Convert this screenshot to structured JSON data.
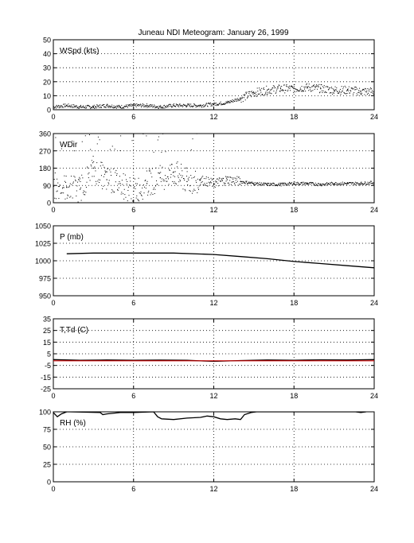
{
  "figure": {
    "title": "Juneau NDI Meteogram:    January 26, 1999"
  },
  "chart_data": [
    {
      "type": "scatter",
      "label": "WSpd (kts)",
      "ylim": [
        0,
        50
      ],
      "yticks": [
        0,
        10,
        20,
        30,
        40,
        50
      ],
      "xlim": [
        0,
        24
      ],
      "xticks": [
        0,
        6,
        12,
        18,
        24
      ],
      "grid": true,
      "series": [
        {
          "color": "#000000",
          "x": [
            0,
            1,
            2,
            3,
            4,
            5,
            6,
            7,
            8,
            9,
            10,
            11,
            12,
            13,
            14,
            15,
            16,
            17,
            18,
            19,
            20,
            21,
            22,
            23,
            24
          ],
          "y": [
            2,
            3,
            2,
            2,
            3,
            2,
            3,
            3,
            2,
            3,
            3,
            3,
            4,
            5,
            8,
            12,
            14,
            15,
            15,
            16,
            15,
            14,
            14,
            13,
            13
          ]
        }
      ]
    },
    {
      "type": "scatter",
      "label": "WDir",
      "ylim": [
        0,
        360
      ],
      "yticks": [
        0,
        90,
        180,
        270,
        360
      ],
      "xlim": [
        0,
        24
      ],
      "xticks": [
        0,
        6,
        12,
        18,
        24
      ],
      "grid": true,
      "series": [
        {
          "color": "#000000",
          "x": [
            0,
            1,
            2,
            3,
            4,
            5,
            6,
            7,
            8,
            9,
            10,
            11,
            12,
            13,
            14,
            15,
            16,
            17,
            18,
            19,
            20,
            21,
            22,
            23,
            24
          ],
          "y": [
            90,
            80,
            70,
            180,
            120,
            100,
            60,
            100,
            130,
            160,
            110,
            120,
            100,
            120,
            110,
            100,
            95,
            95,
            100,
            100,
            95,
            100,
            100,
            100,
            105
          ]
        }
      ]
    },
    {
      "type": "line",
      "label": "P (mb)",
      "ylim": [
        950,
        1050
      ],
      "yticks": [
        950,
        975,
        1000,
        1025,
        1050
      ],
      "xlim": [
        0,
        24
      ],
      "xticks": [
        0,
        6,
        12,
        18,
        24
      ],
      "grid": true,
      "series": [
        {
          "color": "#000000",
          "x": [
            1,
            3,
            6,
            9,
            12,
            14,
            16,
            18,
            20,
            22,
            24
          ],
          "y": [
            1010,
            1011,
            1011,
            1011,
            1009,
            1006,
            1003,
            999,
            996,
            993,
            990
          ]
        }
      ]
    },
    {
      "type": "line",
      "label": "T,Td (C)",
      "ylim": [
        -25,
        35
      ],
      "yticks": [
        -25,
        -15,
        -5,
        5,
        15,
        25,
        35
      ],
      "xlim": [
        0,
        24
      ],
      "xticks": [
        0,
        6,
        12,
        18,
        24
      ],
      "grid": true,
      "series": [
        {
          "color": "#000000",
          "x": [
            0,
            2,
            4,
            6,
            8,
            10,
            12,
            14,
            16,
            18,
            20,
            22,
            24
          ],
          "y": [
            0,
            -0.5,
            -0.3,
            -0.5,
            -0.4,
            -0.6,
            -1.5,
            -0.8,
            -0.3,
            -0.5,
            -0.2,
            -0.3,
            0
          ]
        },
        {
          "color": "#cc0000",
          "x": [
            0,
            2,
            4,
            6,
            8,
            10,
            12,
            14,
            16,
            18,
            20,
            22,
            24
          ],
          "y": [
            -1,
            -1,
            -1,
            -1,
            -1,
            -1,
            -1,
            -1,
            -1,
            -1,
            -1,
            -1,
            -1
          ]
        }
      ]
    },
    {
      "type": "line",
      "label": "RH (%)",
      "ylim": [
        0,
        100
      ],
      "yticks": [
        0,
        25,
        50,
        75,
        100
      ],
      "xlim": [
        0,
        24
      ],
      "xticks": [
        0,
        6,
        12,
        18,
        24
      ],
      "grid": true,
      "series": [
        {
          "color": "#000000",
          "x": [
            0,
            0.3,
            0.6,
            1,
            1.2,
            3.5,
            3.7,
            4,
            5,
            6,
            7.5,
            7.8,
            8.1,
            9,
            10,
            11,
            11.5,
            12,
            12.5,
            13,
            13.6,
            14,
            14.3,
            14.8,
            15.2,
            22.6,
            23,
            23.4
          ],
          "y": [
            99,
            93,
            97,
            100,
            100,
            99,
            96,
            97,
            99,
            99,
            100,
            93,
            90,
            89,
            91,
            92,
            94,
            93,
            90,
            89,
            90,
            89,
            96,
            99,
            100,
            100,
            99,
            100
          ]
        }
      ]
    }
  ]
}
